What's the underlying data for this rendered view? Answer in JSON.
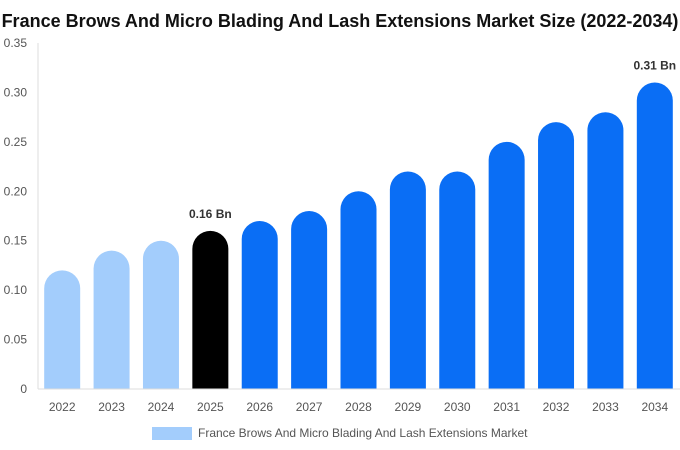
{
  "chart_data": {
    "type": "bar",
    "title": "France Brows And Micro Blading And Lash Extensions Market Size (2022-2034)",
    "xlabel": "",
    "ylabel": "",
    "categories": [
      "2022",
      "2023",
      "2024",
      "2025",
      "2026",
      "2027",
      "2028",
      "2029",
      "2030",
      "2031",
      "2032",
      "2033",
      "2034"
    ],
    "series": [
      {
        "name": "France Brows And Micro Blading And Lash Extensions Market",
        "values": [
          0.12,
          0.14,
          0.15,
          0.16,
          0.17,
          0.18,
          0.2,
          0.22,
          0.22,
          0.25,
          0.27,
          0.28,
          0.31
        ]
      }
    ],
    "ylim": [
      0,
      0.35
    ],
    "yticks": [
      "0",
      "0.05",
      "0.10",
      "0.15",
      "0.20",
      "0.25",
      "0.30",
      "0.35"
    ],
    "data_labels": [
      {
        "category": "2025",
        "text": "0.16 Bn"
      },
      {
        "category": "2034",
        "text": "0.31 Bn"
      }
    ],
    "bar_colors": [
      "#a3cdfc",
      "#a3cdfc",
      "#a3cdfc",
      "#000000",
      "#0a6ef5",
      "#0a6ef5",
      "#0a6ef5",
      "#0a6ef5",
      "#0a6ef5",
      "#0a6ef5",
      "#0a6ef5",
      "#0a6ef5",
      "#0a6ef5"
    ],
    "legend_color": "#a3cdfc",
    "legend_position": "bottom-center",
    "grid": false
  }
}
